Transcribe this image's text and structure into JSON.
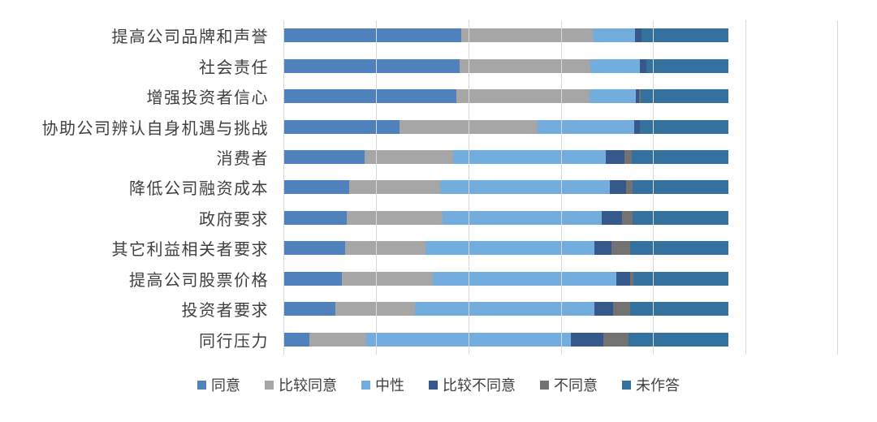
{
  "chart_data": {
    "type": "bar",
    "orientation": "horizontal",
    "stacked": true,
    "units": "percent_of_respondents",
    "title": "",
    "xlabel": "",
    "ylabel": "",
    "categories": [
      "提高公司品牌和声誉",
      "社会责任",
      "增强投资者信心",
      "协助公司辨认自身机遇与挑战",
      "消费者",
      "降低公司融资成本",
      "政府要求",
      "其它利益相关者要求",
      "提高公司股票价格",
      "投资者要求",
      "同行压力"
    ],
    "series": [
      {
        "name": "同意",
        "color": "#4F81BD",
        "values": [
          40.0,
          39.5,
          38.8,
          26.0,
          18.2,
          14.8,
          14.3,
          13.9,
          13.1,
          11.7,
          5.8
        ]
      },
      {
        "name": "比较同意",
        "color": "#A6A6A6",
        "values": [
          29.5,
          29.5,
          30.0,
          31.0,
          19.9,
          20.4,
          21.5,
          18.1,
          20.4,
          17.8,
          12.8
        ]
      },
      {
        "name": "中性",
        "color": "#72ADDD",
        "values": [
          9.5,
          11.0,
          10.4,
          21.7,
          34.3,
          38.1,
          35.7,
          37.8,
          41.2,
          40.3,
          45.9
        ]
      },
      {
        "name": "比较不同意",
        "color": "#36598C",
        "values": [
          1.5,
          1.5,
          0.7,
          1.4,
          4.1,
          3.7,
          4.6,
          3.9,
          3.1,
          4.2,
          7.4
        ]
      },
      {
        "name": "不同意",
        "color": "#727272",
        "values": [
          0,
          0,
          0.4,
          0,
          1.8,
          1.5,
          2.4,
          4.1,
          0.7,
          3.8,
          5.6
        ]
      },
      {
        "name": "未作答",
        "color": "#34719F",
        "values": [
          19.5,
          18.5,
          19.7,
          19.9,
          21.7,
          21.5,
          21.5,
          22.2,
          21.5,
          22.2,
          22.5
        ]
      }
    ],
    "legend": {
      "position": "bottom",
      "labels": [
        "同意",
        "比较同意",
        "中性",
        "比较不同意",
        "不同意",
        "未作答"
      ]
    },
    "grid": {
      "vertical_gridlines": 7,
      "gridline_color": "#D9D9D9"
    },
    "bar_span_fraction_of_plot": 0.803,
    "label_color": "#3F3F3F"
  }
}
